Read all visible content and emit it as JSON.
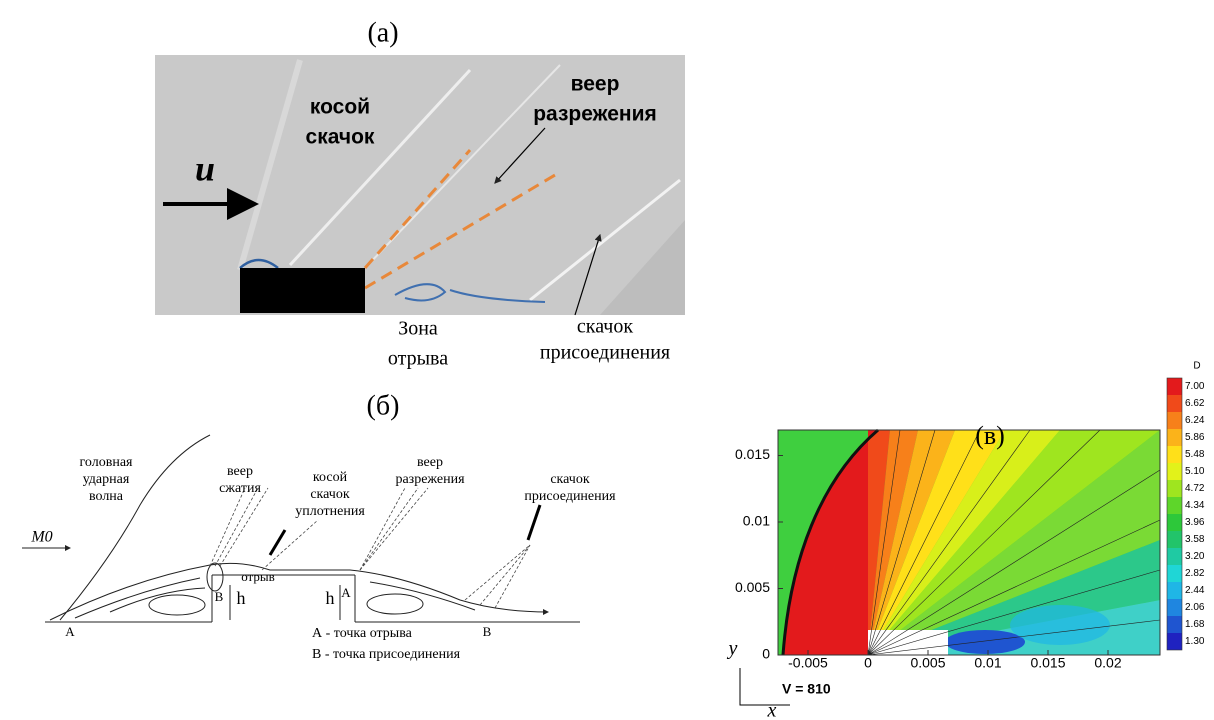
{
  "panel_a": {
    "label": "(а)",
    "oblique_shock": [
      "косой",
      "скачок"
    ],
    "expansion_fan": [
      "веер",
      "разрежения"
    ],
    "velocity": "u",
    "separation_zone": [
      "Зона",
      "отрыва"
    ],
    "reattachment_shock": [
      "скачок",
      "присоединения"
    ]
  },
  "panel_b": {
    "label": "(б)",
    "bow_shock": [
      "головная",
      "ударная",
      "волна"
    ],
    "mach": "M0",
    "compression_fan": [
      "веер",
      "сжатия"
    ],
    "oblique_shock": [
      "косой",
      "скачок",
      "уплотнения"
    ],
    "expansion_fan": [
      "веер",
      "разрежения"
    ],
    "reattachment_shock": [
      "скачок",
      "присоединения"
    ],
    "markers": [
      "B",
      "отрыв",
      "h",
      "h",
      "A",
      "A",
      "B"
    ],
    "legend": [
      "А - точка отрыва",
      "В - точка присоединения"
    ]
  },
  "panel_c": {
    "label": "(в)",
    "xticks": [
      "-0.005",
      "0",
      "0.005",
      "0.01",
      "0.015",
      "0.02"
    ],
    "yticks": [
      "0",
      "0.005",
      "0.01",
      "0.015"
    ],
    "x_label": "x",
    "y_label": "y",
    "annotation": "V = 810",
    "colorbar": {
      "title": "D",
      "levels": [
        "7.00",
        "6.62",
        "6.24",
        "5.86",
        "5.48",
        "5.10",
        "4.72",
        "4.34",
        "3.96",
        "3.58",
        "3.20",
        "2.82",
        "2.44",
        "2.06",
        "1.68",
        "1.30"
      ],
      "colors": [
        "#e31a1c",
        "#f04a1a",
        "#f7801a",
        "#fbb31a",
        "#ffe019",
        "#e2f21a",
        "#9fe51f",
        "#5ed62a",
        "#2dc83a",
        "#22c46a",
        "#1fcaa3",
        "#1fd6d6",
        "#1fb6e6",
        "#1f86e0",
        "#1f55d0",
        "#1f22c0"
      ]
    }
  }
}
